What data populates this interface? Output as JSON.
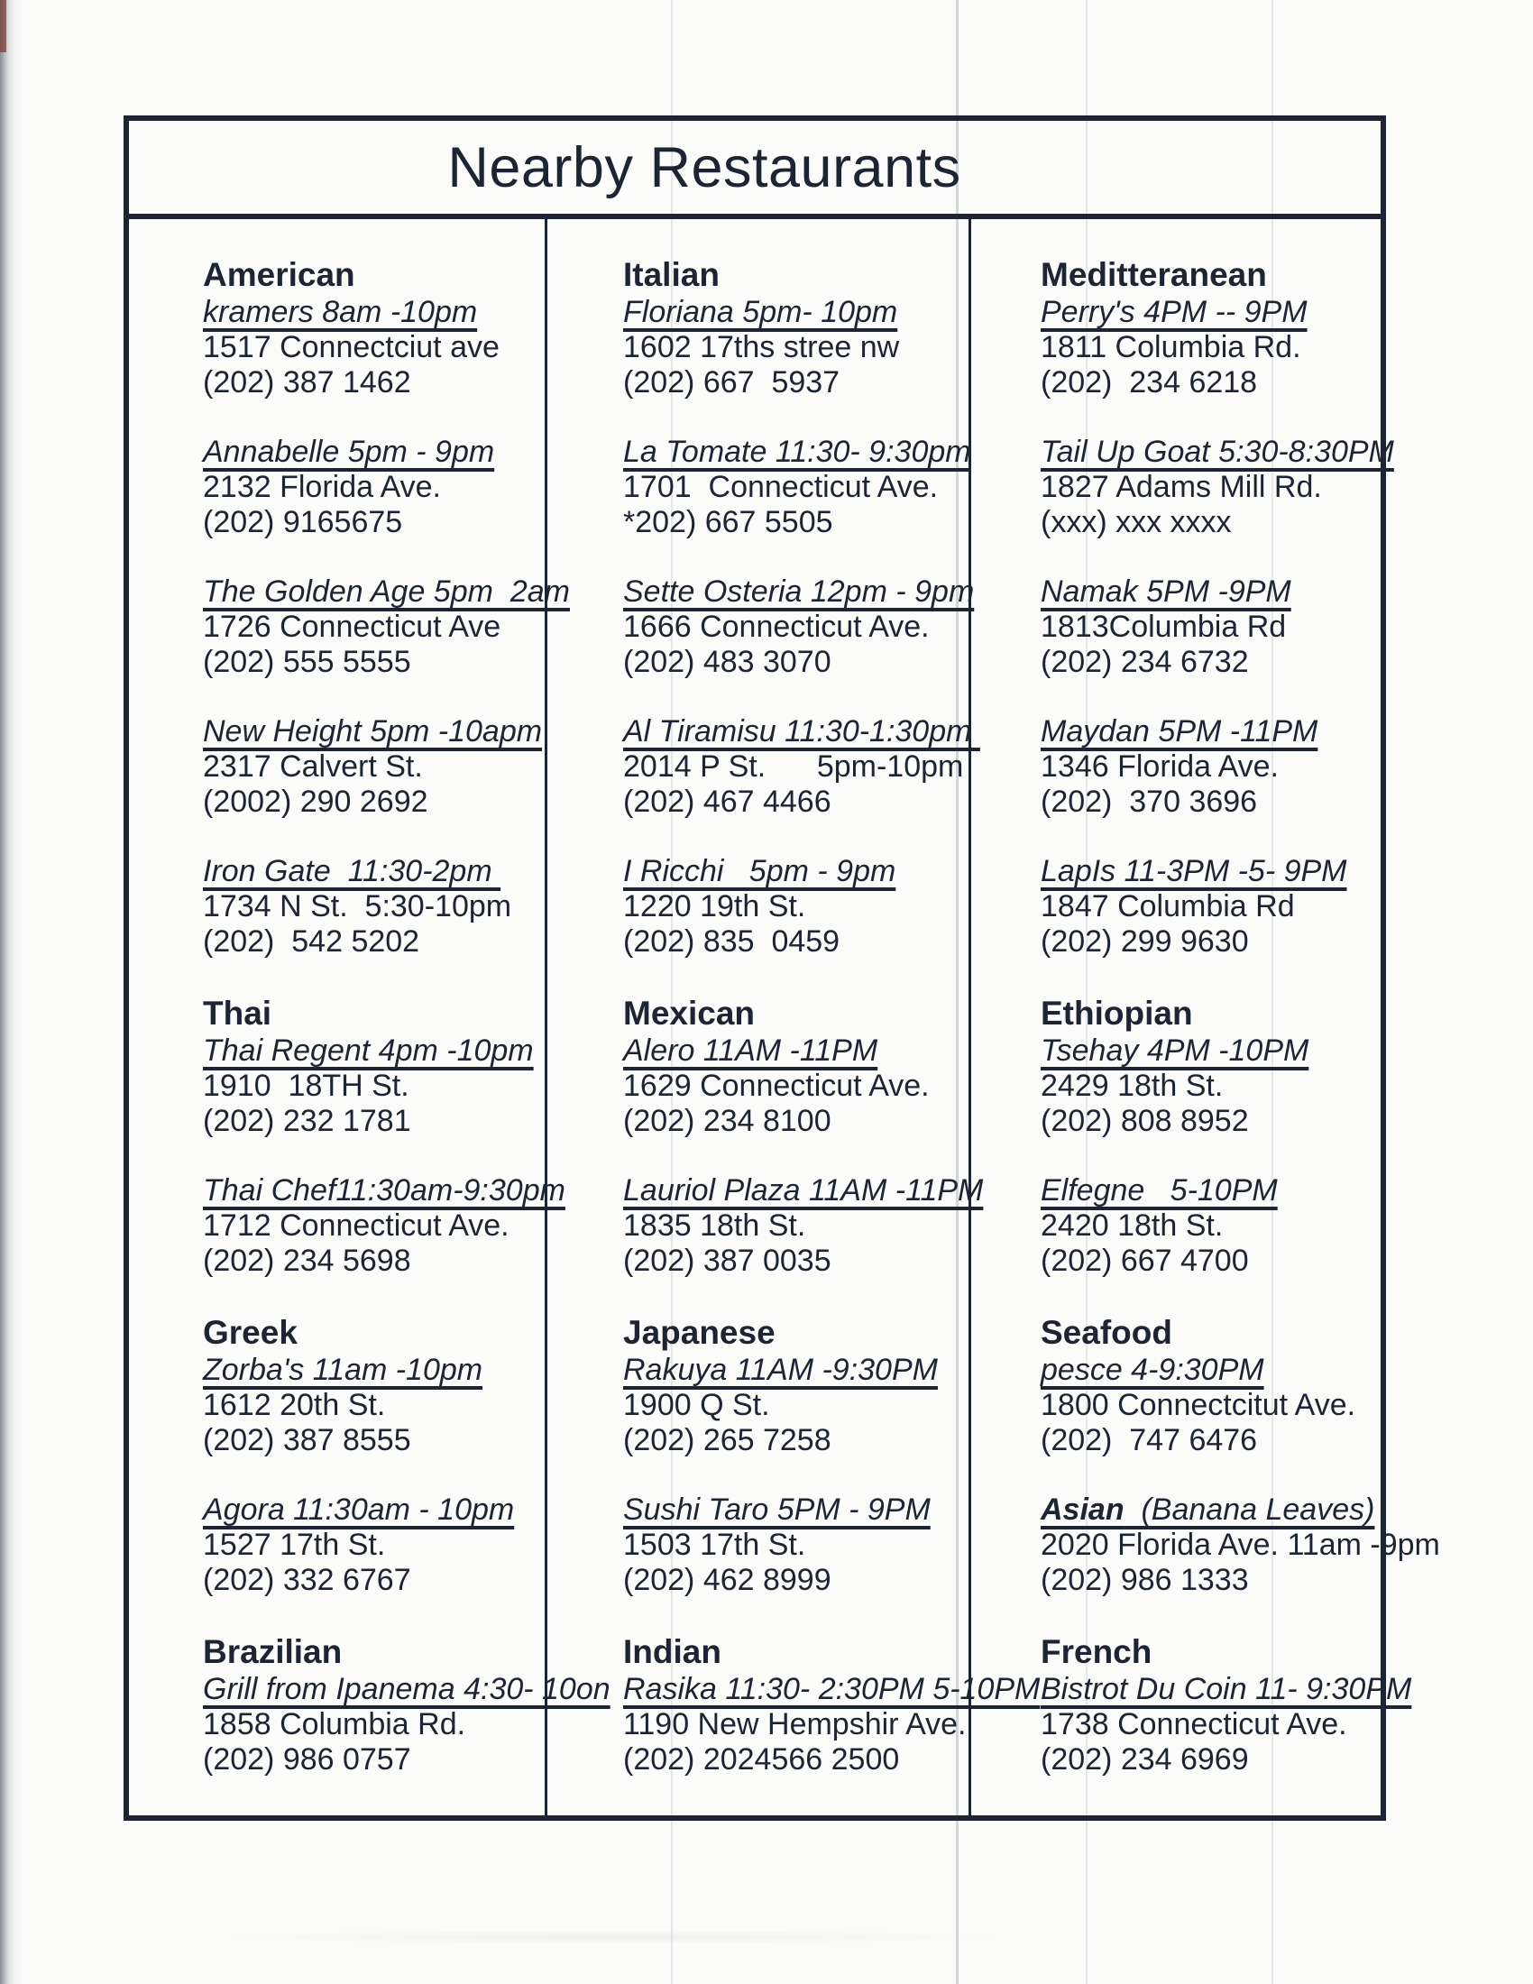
{
  "title": "Nearby Restaurants",
  "ink_color": "#1d2434",
  "columns": [
    {
      "sections": [
        {
          "cuisine": "American",
          "entries": [
            {
              "name_bold": "",
              "name": "kramers 8am -10pm",
              "address": "1517 Connectciut ave",
              "phone": "(202) 387 1462"
            },
            {
              "name_bold": "",
              "name": "Annabelle 5pm - 9pm",
              "address": "2132 Florida Ave.",
              "phone": "(202) 9165675"
            },
            {
              "name_bold": "",
              "name": "The Golden Age 5pm  2am",
              "address": "1726 Connecticut Ave",
              "phone": "(202) 555 5555"
            },
            {
              "name_bold": "",
              "name": "New Height 5pm -10apm",
              "address": "2317 Calvert St.",
              "phone": "(2002) 290 2692"
            },
            {
              "name_bold": "",
              "name": "Iron Gate  11:30-2pm ",
              "address": "1734 N St.  5:30-10pm",
              "phone": "(202)  542 5202"
            }
          ]
        },
        {
          "cuisine": "Thai",
          "entries": [
            {
              "name_bold": "",
              "name": "Thai Regent 4pm -10pm",
              "address": "1910  18TH St.",
              "phone": "(202) 232 1781"
            },
            {
              "name_bold": "",
              "name": "Thai Chef11:30am-9:30pm",
              "address": "1712 Connecticut Ave.",
              "phone": "(202) 234 5698"
            }
          ]
        },
        {
          "cuisine": "Greek",
          "entries": [
            {
              "name_bold": "",
              "name": "Zorba's 11am -10pm",
              "address": "1612 20th St.",
              "phone": "(202) 387 8555"
            },
            {
              "name_bold": "",
              "name": "Agora 11:30am - 10pm",
              "address": "1527 17th St.",
              "phone": "(202) 332 6767"
            }
          ]
        },
        {
          "cuisine": "Brazilian",
          "entries": [
            {
              "name_bold": "",
              "name": "Grill from Ipanema 4:30- 10on",
              "address": "1858 Columbia Rd.",
              "phone": "(202) 986 0757"
            }
          ]
        }
      ]
    },
    {
      "sections": [
        {
          "cuisine": "Italian",
          "entries": [
            {
              "name_bold": "",
              "name": "Floriana 5pm- 10pm",
              "address": "1602 17ths stree nw",
              "phone": "(202) 667  5937"
            },
            {
              "name_bold": "",
              "name": "La Tomate 11:30- 9:30pm",
              "address": "1701  Connecticut Ave.",
              "phone": "*202) 667 5505"
            },
            {
              "name_bold": "",
              "name": "Sette Osteria 12pm - 9pm",
              "address": "1666 Connecticut Ave.",
              "phone": "(202) 483 3070"
            },
            {
              "name_bold": "",
              "name": "Al Tiramisu 11:30-1:30pm ",
              "address": "2014 P St.      5pm-10pm",
              "phone": "(202) 467 4466"
            },
            {
              "name_bold": "",
              "name": "I Ricchi   5pm - 9pm",
              "address": "1220 19th St.",
              "phone": "(202) 835  0459"
            }
          ]
        },
        {
          "cuisine": "Mexican",
          "entries": [
            {
              "name_bold": "",
              "name": "Alero 11AM -11PM",
              "address": "1629 Connecticut Ave.",
              "phone": "(202) 234 8100"
            },
            {
              "name_bold": "",
              "name": "Lauriol Plaza 11AM -11PM",
              "address": "1835 18th St.",
              "phone": "(202) 387 0035"
            }
          ]
        },
        {
          "cuisine": "Japanese",
          "entries": [
            {
              "name_bold": "",
              "name": "Rakuya 11AM -9:30PM",
              "address": "1900 Q St.",
              "phone": "(202) 265 7258"
            },
            {
              "name_bold": "",
              "name": "Sushi Taro 5PM - 9PM",
              "address": "1503 17th St.",
              "phone": "(202) 462 8999"
            }
          ]
        },
        {
          "cuisine": "Indian",
          "entries": [
            {
              "name_bold": "",
              "name": "Rasika 11:30- 2:30PM 5-10PM",
              "address": "1190 New Hempshir Ave.",
              "phone": "(202) 2024566 2500"
            }
          ]
        }
      ]
    },
    {
      "sections": [
        {
          "cuisine": "Meditteranean",
          "entries": [
            {
              "name_bold": "",
              "name": "Perry's 4PM -- 9PM",
              "address": "1811 Columbia Rd.",
              "phone": "(202)  234 6218"
            },
            {
              "name_bold": "",
              "name": "Tail Up Goat 5:30-8:30PM",
              "address": "1827 Adams Mill Rd.",
              "phone": "(xxx) xxx xxxx"
            },
            {
              "name_bold": "",
              "name": "Namak 5PM -9PM",
              "address": "1813Columbia Rd",
              "phone": "(202) 234 6732"
            },
            {
              "name_bold": "",
              "name": "Maydan 5PM -11PM",
              "address": "1346 Florida Ave.",
              "phone": "(202)  370 3696"
            },
            {
              "name_bold": "",
              "name": "LapIs 11-3PM -5- 9PM",
              "address": "1847 Columbia Rd",
              "phone": "(202) 299 9630"
            }
          ]
        },
        {
          "cuisine": "Ethiopian",
          "entries": [
            {
              "name_bold": "",
              "name": "Tsehay 4PM -10PM",
              "address": "2429 18th St.",
              "phone": "(202) 808 8952"
            },
            {
              "name_bold": "",
              "name": "Elfegne   5-10PM",
              "address": "2420 18th St.",
              "phone": "(202) 667 4700"
            }
          ]
        },
        {
          "cuisine": "Seafood",
          "entries": [
            {
              "name_bold": "",
              "name": "pesce 4-9:30PM",
              "address": "1800 Connectcitut Ave.",
              "phone": "(202)  747 6476"
            },
            {
              "name_bold": "Asian",
              "name": "  (Banana Leaves)",
              "address": "2020 Florida Ave. 11am -9pm",
              "phone": "(202) 986 1333"
            }
          ]
        },
        {
          "cuisine": "French",
          "entries": [
            {
              "name_bold": "",
              "name": "Bistrot Du Coin 11- 9:30PM",
              "address": "1738 Connecticut Ave.",
              "phone": "(202) 234 6969"
            }
          ]
        }
      ]
    }
  ]
}
